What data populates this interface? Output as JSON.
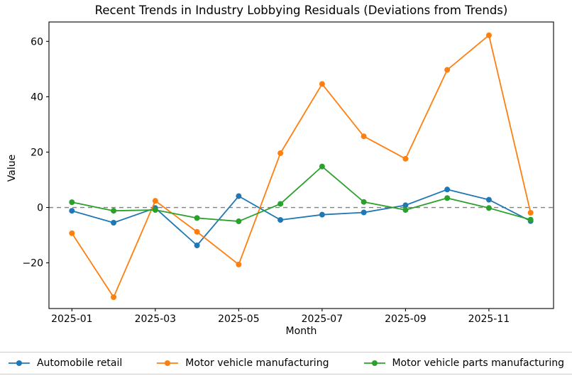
{
  "figure": {
    "background": "#ffffff",
    "axis_color": "#000000"
  },
  "chart_data": {
    "type": "line",
    "title": "Recent Trends in Industry Lobbying Residuals (Deviations from Trends)",
    "xlabel": "Month",
    "ylabel": "Value",
    "months": [
      "2025-01",
      "2025-02",
      "2025-03",
      "2025-04",
      "2025-05",
      "2025-06",
      "2025-07",
      "2025-08",
      "2025-09",
      "2025-10",
      "2025-11",
      "2025-12"
    ],
    "x_tick_positions": [
      1,
      3,
      5,
      7,
      9,
      11
    ],
    "x_tick_labels": [
      "2025-01",
      "2025-03",
      "2025-05",
      "2025-07",
      "2025-09",
      "2025-11"
    ],
    "y_ticks": [
      60,
      40,
      20,
      0,
      -20
    ],
    "y_tick_labels": [
      "60",
      "40",
      "20",
      "0",
      "−20"
    ],
    "xlim": [
      0.45,
      12.55
    ],
    "ylim": [
      -36.5,
      67
    ],
    "grid": false,
    "legend_position": "bottom",
    "zero_line": {
      "value": 0,
      "color": "#808080",
      "style": "dashed"
    },
    "marker": "circle",
    "series": [
      {
        "name": "Automobile retail",
        "color": "#1f77b4",
        "values": [
          -1.2,
          -5.5,
          -0.2,
          -13.7,
          4.1,
          -4.5,
          -2.6,
          -1.8,
          0.8,
          6.5,
          2.8,
          -4.9
        ]
      },
      {
        "name": "Motor vehicle manufacturing",
        "color": "#ff7f0e",
        "values": [
          -9.3,
          -32.4,
          2.4,
          -8.8,
          -20.6,
          19.6,
          44.6,
          25.7,
          17.6,
          49.7,
          62.2,
          -1.9
        ]
      },
      {
        "name": "Motor vehicle parts manufacturing",
        "color": "#2ca02c",
        "values": [
          1.9,
          -1.2,
          -0.9,
          -3.8,
          -5.0,
          1.3,
          14.8,
          2.0,
          -0.9,
          3.4,
          -0.2,
          -4.4
        ]
      }
    ]
  }
}
